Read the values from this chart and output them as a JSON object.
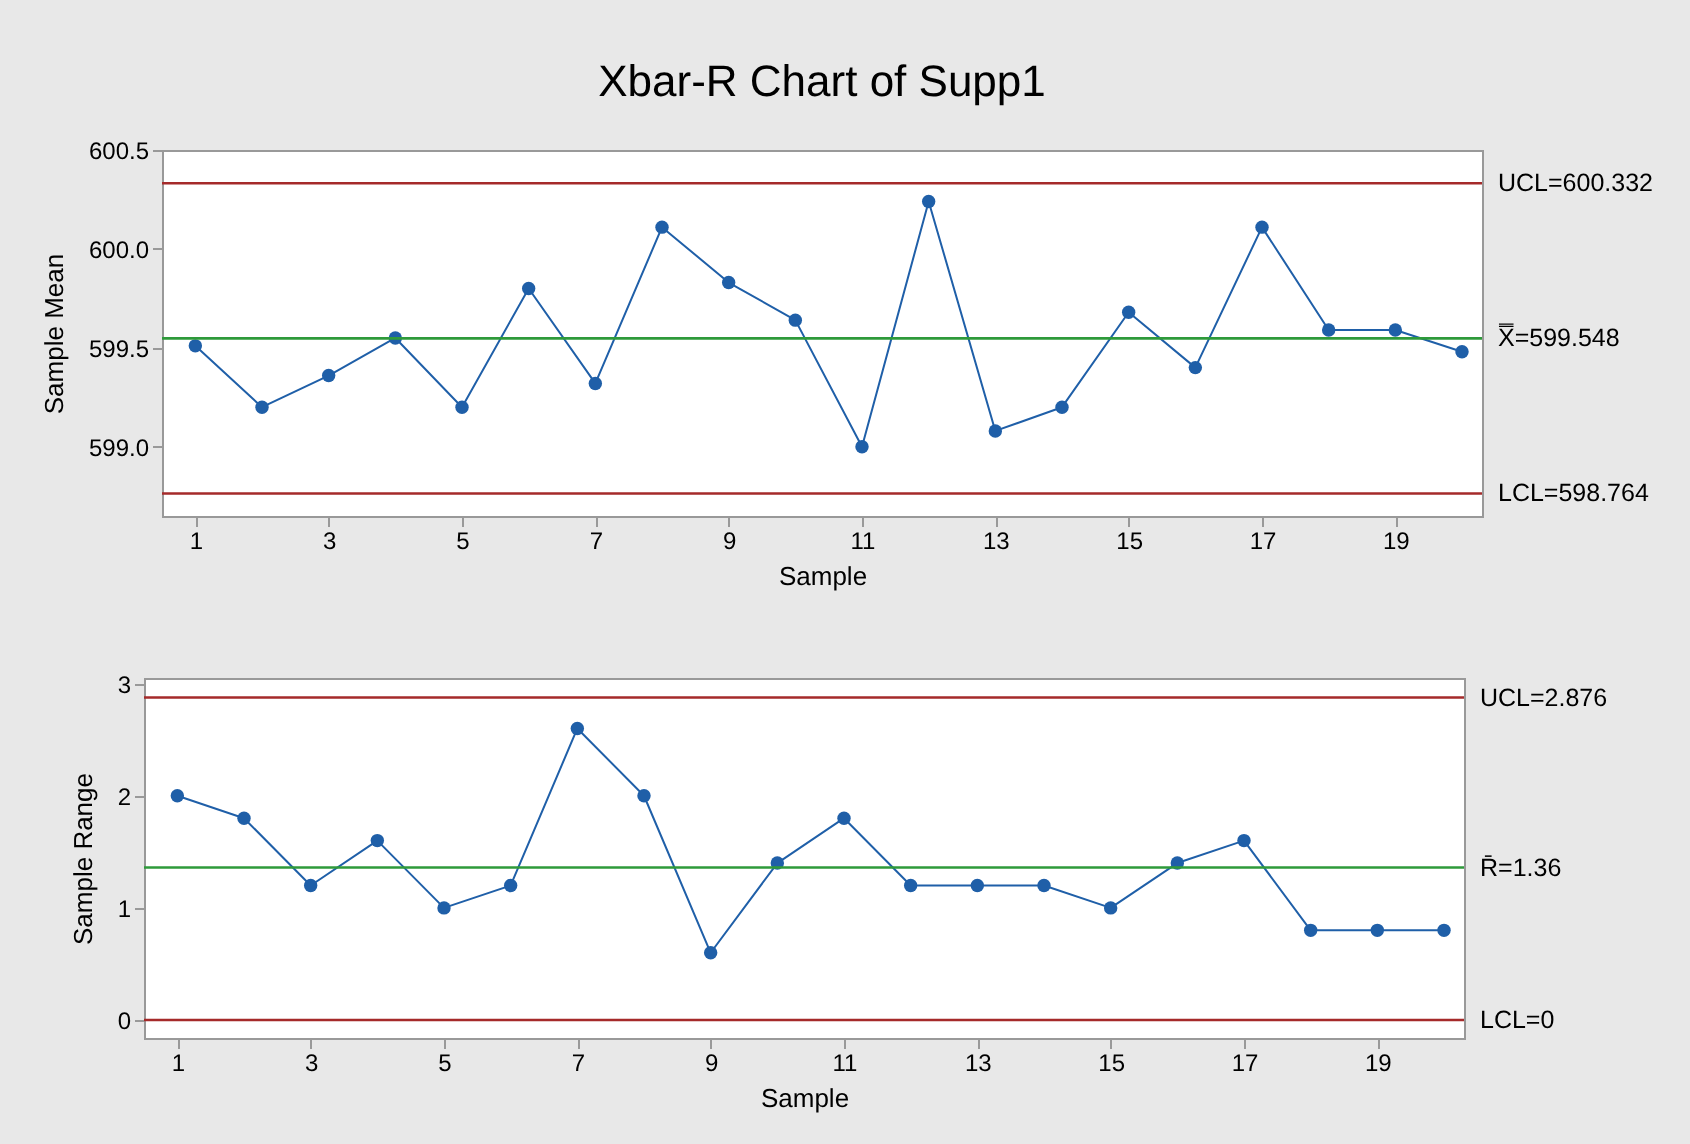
{
  "chart_data": [
    {
      "type": "line",
      "title": "Xbar-R Chart of Supp1",
      "xlabel": "Sample",
      "ylabel": "Sample Mean",
      "x": [
        1,
        2,
        3,
        4,
        5,
        6,
        7,
        8,
        9,
        10,
        11,
        12,
        13,
        14,
        15,
        16,
        17,
        18,
        19,
        20
      ],
      "series": [
        {
          "color": "#1f5fa8",
          "values": [
            599.51,
            599.2,
            599.36,
            599.55,
            599.2,
            599.8,
            599.32,
            600.11,
            599.83,
            599.64,
            599.0,
            600.24,
            599.08,
            599.2,
            599.68,
            599.4,
            600.11,
            599.59,
            599.59,
            599.48
          ]
        }
      ],
      "xlim": [
        0.5,
        20.3
      ],
      "xticks": [
        1,
        3,
        5,
        7,
        9,
        11,
        13,
        15,
        17,
        19
      ],
      "ylim": [
        598.65,
        600.5
      ],
      "yticks": [
        {
          "value": 599.0,
          "label": "599.0"
        },
        {
          "value": 599.5,
          "label": "599.5"
        },
        {
          "value": 600.0,
          "label": "600.0"
        },
        {
          "value": 600.5,
          "label": "600.5"
        }
      ],
      "ref_lines": [
        {
          "axis": "y",
          "value": 600.332,
          "label": "UCL=600.332",
          "color": "#a52a2a"
        },
        {
          "axis": "y",
          "value": 599.548,
          "label": "X̿=599.548",
          "color": "#2e9a3a"
        },
        {
          "axis": "y",
          "value": 598.764,
          "label": "LCL=598.764",
          "color": "#a52a2a"
        }
      ],
      "marker": "circle",
      "grid": false
    },
    {
      "type": "line",
      "xlabel": "Sample",
      "ylabel": "Sample Range",
      "x": [
        1,
        2,
        3,
        4,
        5,
        6,
        7,
        8,
        9,
        10,
        11,
        12,
        13,
        14,
        15,
        16,
        17,
        18,
        19,
        20
      ],
      "series": [
        {
          "color": "#1f5fa8",
          "values": [
            2.0,
            1.8,
            1.2,
            1.6,
            1.0,
            1.2,
            2.6,
            2.0,
            0.6,
            1.4,
            1.8,
            1.2,
            1.2,
            1.2,
            1.0,
            1.4,
            1.6,
            0.8,
            0.8,
            0.8
          ]
        }
      ],
      "xlim": [
        0.5,
        20.3
      ],
      "xticks": [
        1,
        3,
        5,
        7,
        9,
        11,
        13,
        15,
        17,
        19
      ],
      "ylim": [
        -0.16,
        3.05
      ],
      "yticks": [
        0,
        1,
        2,
        3
      ],
      "ref_lines": [
        {
          "axis": "y",
          "value": 2.876,
          "label": "UCL=2.876",
          "color": "#a52a2a"
        },
        {
          "axis": "y",
          "value": 1.36,
          "label": "R̄=1.36",
          "color": "#2e9a3a"
        },
        {
          "axis": "y",
          "value": 0,
          "label": "LCL=0",
          "color": "#a52a2a"
        }
      ],
      "marker": "circle",
      "grid": false
    }
  ]
}
